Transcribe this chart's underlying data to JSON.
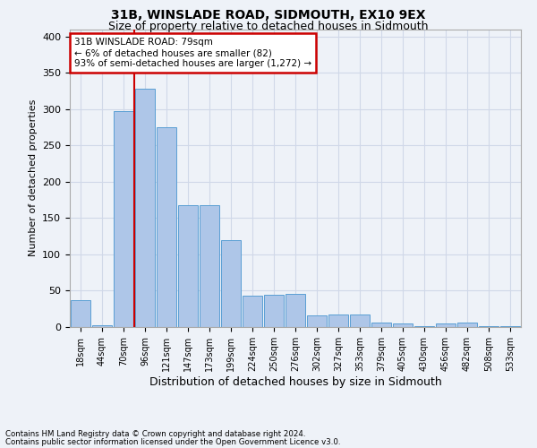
{
  "title1": "31B, WINSLADE ROAD, SIDMOUTH, EX10 9EX",
  "title2": "Size of property relative to detached houses in Sidmouth",
  "xlabel": "Distribution of detached houses by size in Sidmouth",
  "ylabel": "Number of detached properties",
  "footnote1": "Contains HM Land Registry data © Crown copyright and database right 2024.",
  "footnote2": "Contains public sector information licensed under the Open Government Licence v3.0.",
  "bin_labels": [
    "18sqm",
    "44sqm",
    "70sqm",
    "96sqm",
    "121sqm",
    "147sqm",
    "173sqm",
    "199sqm",
    "224sqm",
    "250sqm",
    "276sqm",
    "302sqm",
    "327sqm",
    "353sqm",
    "379sqm",
    "405sqm",
    "430sqm",
    "456sqm",
    "482sqm",
    "508sqm",
    "533sqm"
  ],
  "bar_values": [
    37,
    3,
    297,
    328,
    275,
    168,
    168,
    120,
    43,
    45,
    46,
    16,
    17,
    17,
    6,
    5,
    1,
    5,
    6,
    1,
    1
  ],
  "bar_color": "#aec6e8",
  "bar_edge_color": "#5a9fd4",
  "grid_color": "#d0d8e8",
  "bg_color": "#eef2f8",
  "vline_x": 2.5,
  "vline_color": "#cc0000",
  "annotation_text": "31B WINSLADE ROAD: 79sqm\n← 6% of detached houses are smaller (82)\n93% of semi-detached houses are larger (1,272) →",
  "annotation_box_color": "#ffffff",
  "annotation_box_edge": "#cc0000",
  "ylim": [
    0,
    410
  ],
  "yticks": [
    0,
    50,
    100,
    150,
    200,
    250,
    300,
    350,
    400
  ]
}
